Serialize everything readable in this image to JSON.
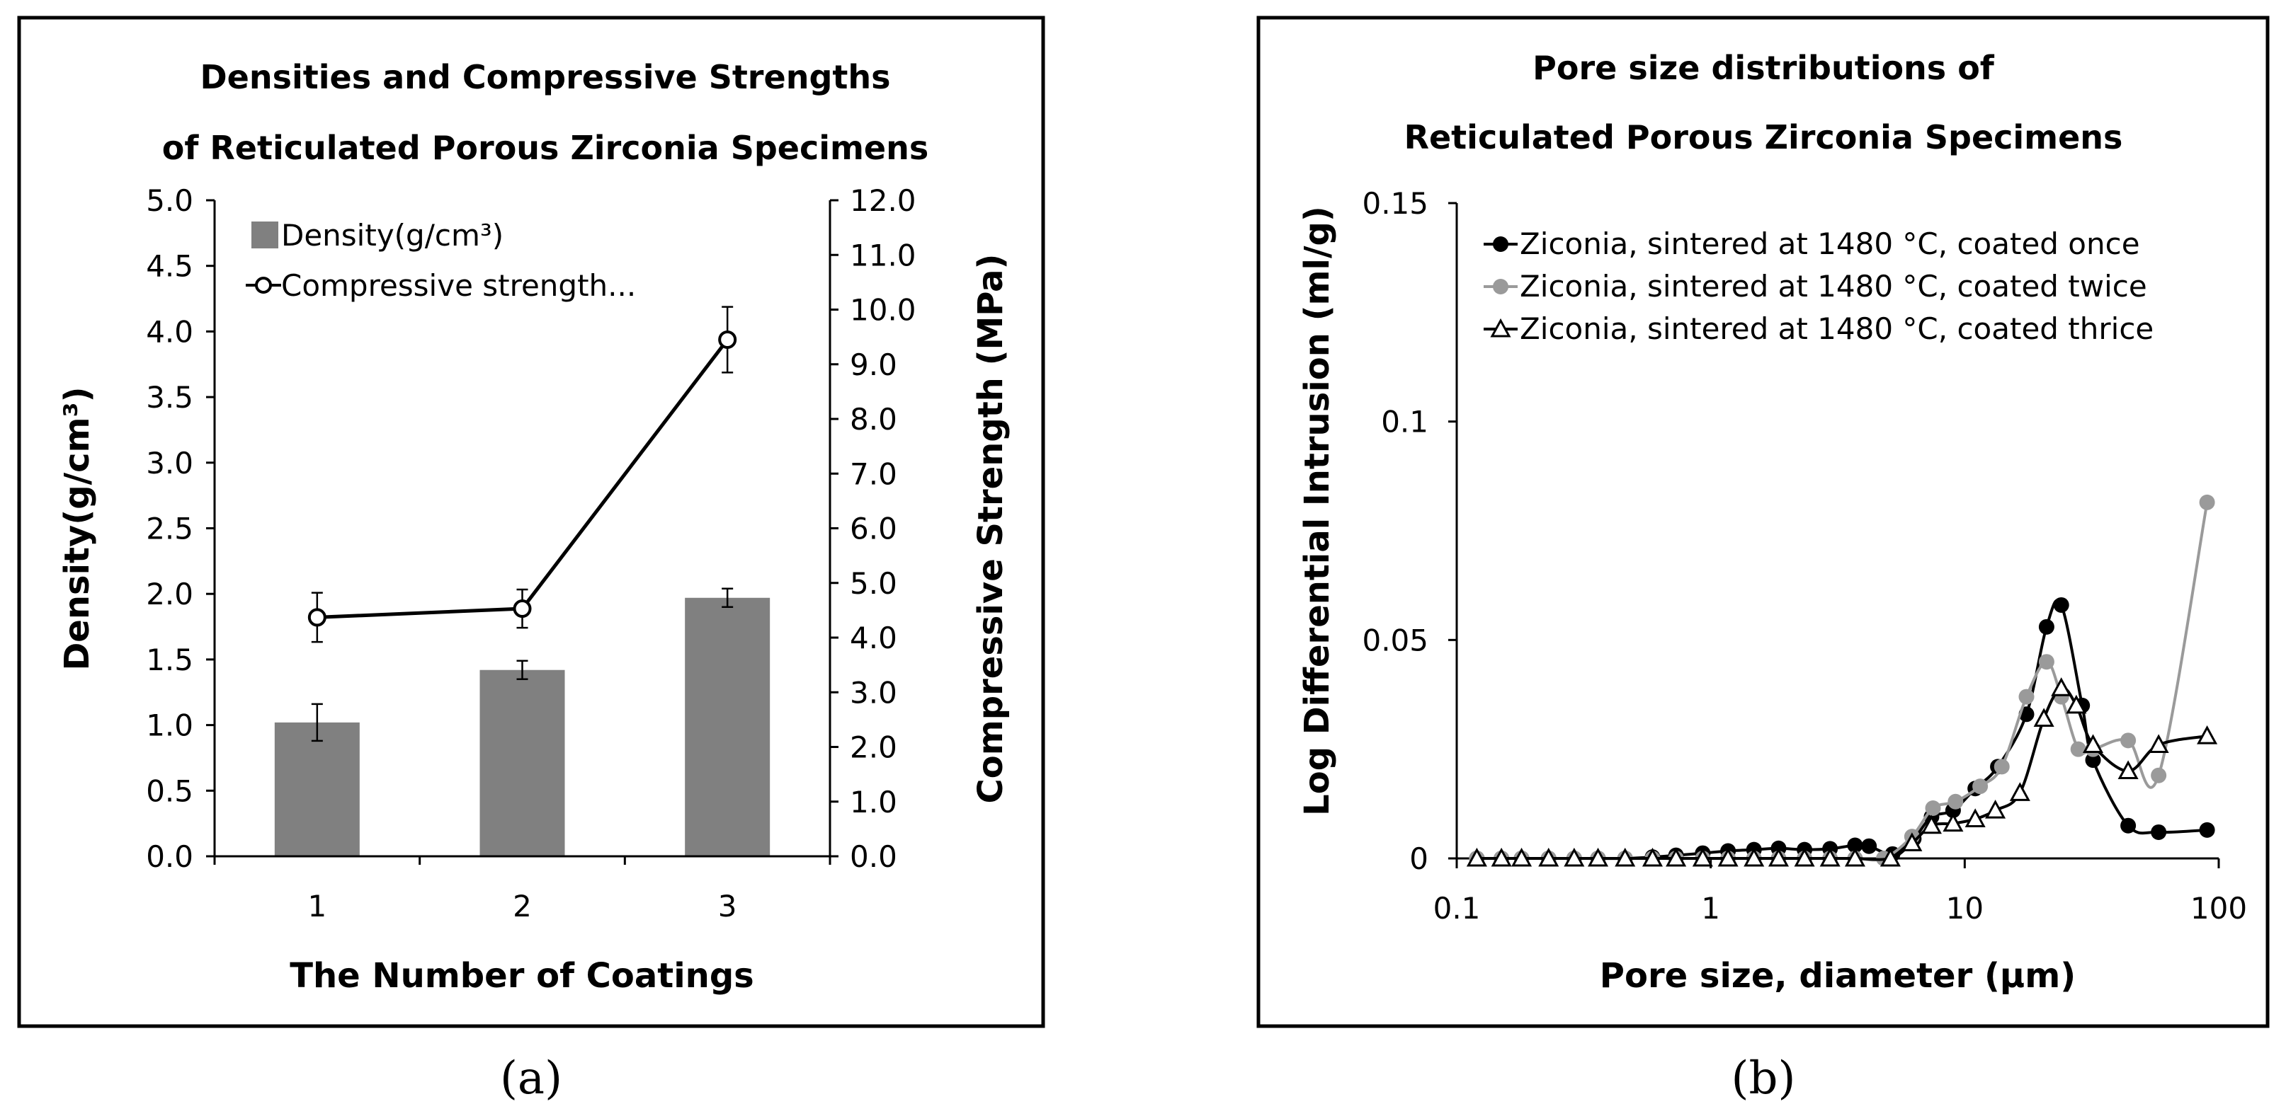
{
  "chart_data": [
    {
      "type": "bar+line",
      "title": [
        "Densities and Compressive Strengths",
        "of Reticulated Porous Zirconia Specimens"
      ],
      "xlabel": "The Number of Coatings",
      "ylabel": "Density(g/cm³)",
      "y2label": "Compressive Strength (MPa)",
      "categories": [
        "1",
        "2",
        "3"
      ],
      "ylim": [
        0,
        5
      ],
      "y2lim": [
        0,
        12
      ],
      "yticks": [
        "0.0",
        "0.5",
        "1.0",
        "1.5",
        "2.0",
        "2.5",
        "3.0",
        "3.5",
        "4.0",
        "4.5",
        "5.0"
      ],
      "y2ticks": [
        "0.0",
        "1.0",
        "2.0",
        "3.0",
        "4.0",
        "5.0",
        "6.0",
        "7.0",
        "8.0",
        "9.0",
        "10.0",
        "11.0",
        "12.0"
      ],
      "series": [
        {
          "name": "Density(g/cm³)",
          "kind": "bar",
          "axis": "left",
          "color": "#808080",
          "values": [
            1.02,
            1.42,
            1.97
          ],
          "errors": [
            0.14,
            0.07,
            0.07
          ]
        },
        {
          "name": "Compressive strength...",
          "kind": "line",
          "axis": "right",
          "color": "#000000",
          "values": [
            4.37,
            4.53,
            9.45
          ],
          "errors": [
            0.45,
            0.35,
            0.6
          ]
        }
      ],
      "legend": "top-left",
      "caption": "(a)"
    },
    {
      "type": "scatter-line",
      "title": [
        "Pore size distributions of",
        "Reticulated Porous Zirconia Specimens"
      ],
      "xlabel": "Pore size, diameter (μm)",
      "ylabel": "Log Differential Intrusion (ml/g)",
      "xscale": "log",
      "xlim": [
        0.1,
        100
      ],
      "ylim": [
        0,
        0.15
      ],
      "xticks": [
        "0.1",
        "1",
        "10",
        "100"
      ],
      "yticks": [
        "0",
        "0.05",
        "0.1",
        "0.15"
      ],
      "legend": "top-left",
      "caption": "(b)",
      "series": [
        {
          "name": "Ziconia, sintered at 1480 °C, coated once",
          "color": "#000000",
          "marker": "filled-circle",
          "points": [
            [
              0.12,
              0
            ],
            [
              0.15,
              0
            ],
            [
              0.18,
              0
            ],
            [
              0.23,
              0
            ],
            [
              0.29,
              0
            ],
            [
              0.36,
              0
            ],
            [
              0.46,
              0
            ],
            [
              0.59,
              0.0003
            ],
            [
              0.73,
              0.0007
            ],
            [
              0.93,
              0.0012
            ],
            [
              1.17,
              0.0017
            ],
            [
              1.48,
              0.002
            ],
            [
              1.85,
              0.0023
            ],
            [
              2.34,
              0.002
            ],
            [
              2.95,
              0.0022
            ],
            [
              3.7,
              0.003
            ],
            [
              4.2,
              0.0028
            ],
            [
              5.2,
              0.001
            ],
            [
              6.3,
              0.0045
            ],
            [
              7.4,
              0.0095
            ],
            [
              9,
              0.011
            ],
            [
              11,
              0.016
            ],
            [
              13.5,
              0.021
            ],
            [
              17.5,
              0.033
            ],
            [
              21,
              0.053
            ],
            [
              24,
              0.058
            ],
            [
              29,
              0.035
            ],
            [
              32,
              0.0225
            ],
            [
              44,
              0.0075
            ],
            [
              58,
              0.006
            ],
            [
              90,
              0.0065
            ]
          ]
        },
        {
          "name": "Ziconia, sintered at 1480 °C, coated twice",
          "color": "#9a9a9a",
          "marker": "filled-circle",
          "points": [
            [
              0.12,
              0
            ],
            [
              0.15,
              0
            ],
            [
              0.18,
              0
            ],
            [
              0.23,
              0
            ],
            [
              0.29,
              0
            ],
            [
              0.36,
              0
            ],
            [
              0.46,
              0
            ],
            [
              0.59,
              0
            ],
            [
              0.73,
              0
            ],
            [
              0.93,
              0
            ],
            [
              1.17,
              0
            ],
            [
              1.48,
              0
            ],
            [
              1.85,
              0
            ],
            [
              2.34,
              0
            ],
            [
              2.95,
              0
            ],
            [
              3.7,
              0
            ],
            [
              4.8,
              0
            ],
            [
              6.2,
              0.005
            ],
            [
              7.5,
              0.0115
            ],
            [
              9.2,
              0.013
            ],
            [
              11.5,
              0.0165
            ],
            [
              14,
              0.021
            ],
            [
              17.5,
              0.037
            ],
            [
              21,
              0.045
            ],
            [
              24,
              0.037
            ],
            [
              28,
              0.025
            ],
            [
              32,
              0.025
            ],
            [
              44,
              0.027
            ],
            [
              58,
              0.019
            ],
            [
              90,
              0.0815
            ]
          ]
        },
        {
          "name": "Ziconia, sintered at 1480 °C, coated thrice",
          "color": "#000000",
          "marker": "open-triangle",
          "points": [
            [
              0.12,
              0
            ],
            [
              0.15,
              0
            ],
            [
              0.18,
              0
            ],
            [
              0.23,
              0
            ],
            [
              0.29,
              0
            ],
            [
              0.36,
              0
            ],
            [
              0.46,
              0
            ],
            [
              0.59,
              0
            ],
            [
              0.73,
              0
            ],
            [
              0.93,
              0
            ],
            [
              1.17,
              0
            ],
            [
              1.48,
              0
            ],
            [
              1.85,
              0
            ],
            [
              2.34,
              0
            ],
            [
              2.95,
              0
            ],
            [
              3.7,
              0
            ],
            [
              5.1,
              0
            ],
            [
              6.2,
              0.0035
            ],
            [
              7.4,
              0.0075
            ],
            [
              9,
              0.008
            ],
            [
              11,
              0.009
            ],
            [
              13.2,
              0.011
            ],
            [
              16.5,
              0.015
            ],
            [
              20.5,
              0.032
            ],
            [
              24,
              0.039
            ],
            [
              27.5,
              0.035
            ],
            [
              32,
              0.026
            ],
            [
              44,
              0.02
            ],
            [
              58,
              0.026
            ],
            [
              90,
              0.028
            ]
          ]
        }
      ]
    }
  ]
}
